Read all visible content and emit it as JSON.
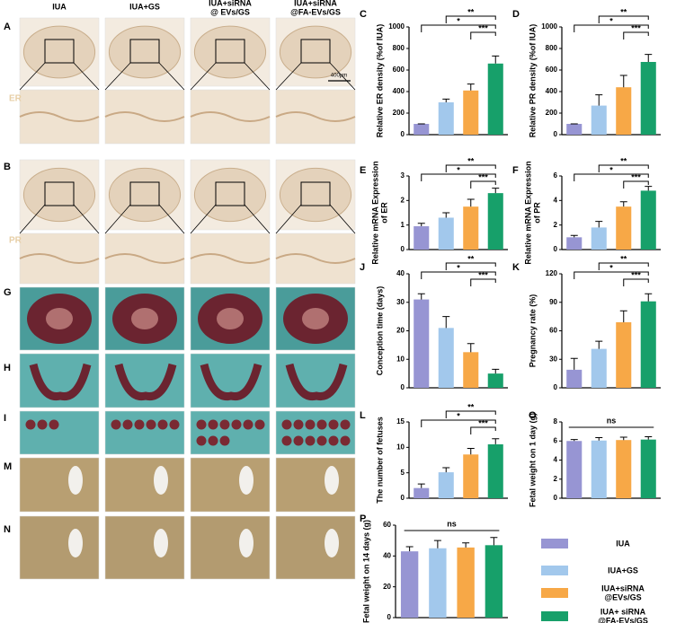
{
  "figure": {
    "panels": [
      "A",
      "B",
      "G",
      "H",
      "I",
      "M",
      "N"
    ],
    "columns": [
      [
        "IUA"
      ],
      [
        "IUA+GS"
      ],
      [
        "IUA+siRNA",
        "@ EVs/GS"
      ],
      [
        "IUA+siRNA",
        "@FA-EVs/GS"
      ]
    ],
    "stain_labels": [
      "ER",
      "PR"
    ],
    "scale_bar": "400μm"
  },
  "legend": {
    "items": [
      {
        "label": [
          "IUA"
        ],
        "color": "#9795d3"
      },
      {
        "label": [
          "IUA+GS"
        ],
        "color": "#a2c8ec"
      },
      {
        "label": [
          "IUA+siRNA",
          "@EVs/GS"
        ],
        "color": "#f7a847"
      },
      {
        "label": [
          "IUA+ siRNA",
          "@FA-EVs/GS"
        ],
        "color": "#17a06a"
      }
    ]
  },
  "chart_data": [
    {
      "type": "bar",
      "panel": "C",
      "ylabel": [
        "Relative ER density (%of IUA)"
      ],
      "values": [
        100,
        300,
        410,
        660
      ],
      "errors": [
        0,
        30,
        60,
        70
      ],
      "ylim": [
        0,
        1000
      ],
      "yticks": [
        0,
        200,
        400,
        600,
        800,
        1000
      ],
      "annotations": [
        "*",
        "**",
        "***"
      ]
    },
    {
      "type": "bar",
      "panel": "D",
      "ylabel": [
        "Relative PR density (%of IUA)"
      ],
      "values": [
        100,
        270,
        440,
        675
      ],
      "errors": [
        0,
        100,
        110,
        70
      ],
      "ylim": [
        0,
        1000
      ],
      "yticks": [
        0,
        200,
        400,
        600,
        800,
        1000
      ],
      "annotations": [
        "*",
        "**",
        "***"
      ]
    },
    {
      "type": "bar",
      "panel": "E",
      "ylabel": [
        "Relative mRNA Expression",
        "of ER"
      ],
      "values": [
        0.95,
        1.3,
        1.75,
        2.3
      ],
      "errors": [
        0.12,
        0.2,
        0.3,
        0.2
      ],
      "ylim": [
        0,
        3
      ],
      "yticks": [
        0,
        1,
        2,
        3
      ],
      "annotations": [
        "*",
        "**",
        "***"
      ]
    },
    {
      "type": "bar",
      "panel": "F",
      "ylabel": [
        "Relative mRNA Expression",
        "of PR"
      ],
      "values": [
        1.0,
        1.8,
        3.5,
        4.8
      ],
      "errors": [
        0.15,
        0.5,
        0.4,
        0.35
      ],
      "ylim": [
        0,
        6
      ],
      "yticks": [
        0,
        2,
        4,
        6
      ],
      "annotations": [
        "*",
        "**",
        "***"
      ]
    },
    {
      "type": "bar",
      "panel": "J",
      "ylabel": [
        "Conception time (days)"
      ],
      "values": [
        31,
        21,
        12.5,
        5
      ],
      "errors": [
        2,
        4,
        3,
        1.5
      ],
      "ylim": [
        0,
        40
      ],
      "yticks": [
        0,
        10,
        20,
        30,
        40
      ],
      "annotations": [
        "*",
        "**",
        "***"
      ]
    },
    {
      "type": "bar",
      "panel": "K",
      "ylabel": [
        "Pregnancy rate (%)"
      ],
      "values": [
        19,
        41,
        69,
        91
      ],
      "errors": [
        12,
        8,
        12,
        8
      ],
      "ylim": [
        0,
        120
      ],
      "yticks": [
        0,
        30,
        60,
        90,
        120
      ],
      "annotations": [
        "*",
        "**",
        "***"
      ]
    },
    {
      "type": "bar",
      "panel": "L",
      "ylabel": [
        "The number of fetuses"
      ],
      "values": [
        2,
        5.1,
        8.6,
        10.6
      ],
      "errors": [
        0.8,
        0.9,
        1.2,
        1.1
      ],
      "ylim": [
        0,
        15
      ],
      "yticks": [
        0,
        5,
        10,
        15
      ],
      "annotations": [
        "*",
        "**",
        "***"
      ]
    },
    {
      "type": "bar",
      "panel": "O",
      "ylabel": [
        "Fetal weight on 1 day (g)"
      ],
      "values": [
        6,
        6.05,
        6.1,
        6.15
      ],
      "errors": [
        0.15,
        0.3,
        0.3,
        0.3
      ],
      "ylim": [
        0,
        8
      ],
      "yticks": [
        0,
        2,
        4,
        6,
        8
      ],
      "annotations": [
        "ns"
      ]
    },
    {
      "type": "bar",
      "panel": "P",
      "ylabel": [
        "Fetal weight on 14 days (g)"
      ],
      "values": [
        43,
        45,
        45.5,
        47
      ],
      "errors": [
        3,
        5,
        3,
        5
      ],
      "ylim": [
        0,
        60
      ],
      "yticks": [
        0,
        20,
        40,
        60
      ],
      "annotations": [
        "ns"
      ]
    }
  ]
}
